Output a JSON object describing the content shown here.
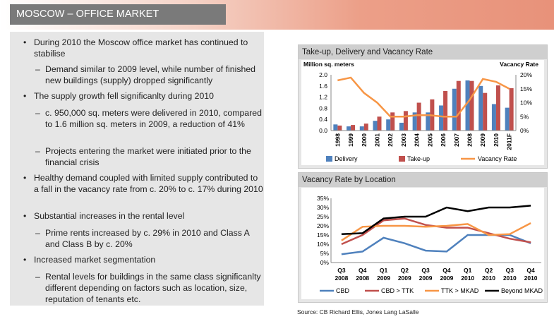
{
  "header": {
    "title": "MOSCOW – OFFICE MARKET"
  },
  "bullets": [
    {
      "level": 1,
      "marker": "•",
      "text": "During 2010 the Moscow office market has continued to stabilise"
    },
    {
      "level": 2,
      "marker": "–",
      "text": "Demand similar to 2009 level, while number of finished new buildings (supply) dropped significantly"
    },
    {
      "level": 1,
      "marker": "•",
      "text": "The supply growth fell significanlty during 2010"
    },
    {
      "level": 2,
      "marker": "–",
      "text": "c. 950,000 sq. meters were delivered in 2010, compared to 1.6 million sq. meters in 2009, a reduction of 41%"
    },
    {
      "level": 2,
      "marker": "–",
      "text": "Projects entering the market were initiated prior to the financial crisis"
    },
    {
      "level": 1,
      "marker": "•",
      "text": "Healthy demand coupled with limited supply contributed to a fall in the vacancy rate from c. 20% to c. 17% during 2010"
    },
    {
      "level": 1,
      "marker": "•",
      "text": "Substantial increases in the rental level"
    },
    {
      "level": 2,
      "marker": "–",
      "text": "Prime rents increased by c. 29% in 2010 and Class A and Class B by c. 20%"
    },
    {
      "level": 1,
      "marker": "•",
      "text": "Increased market segmentation"
    },
    {
      "level": 2,
      "marker": "–",
      "text": "Rental levels for buildings in the same class significanlty different depending on factors such as location, size, reputation of tenants etc."
    }
  ],
  "source": "Source: CB Richard Ellis, Jones Lang LaSalle",
  "chart_data": [
    {
      "type": "bar",
      "panel_title": "Take-up, Delivery and Vacancy Rate",
      "ylabel_left": "Million sq. meters",
      "ylabel_right": "Vacancy Rate",
      "categories": [
        "1998",
        "1999",
        "2000",
        "2001",
        "2002",
        "2003",
        "2004",
        "2005",
        "2006",
        "2007",
        "2008",
        "2009",
        "2010",
        "2011F"
      ],
      "ylim_left": [
        0,
        2.0
      ],
      "yticks_left": [
        "0.0",
        "0.4",
        "0.8",
        "1.2",
        "1.6",
        "2.0"
      ],
      "ylim_right": [
        0,
        20
      ],
      "yticks_right": [
        "0%",
        "5%",
        "10%",
        "15%",
        "20%"
      ],
      "series": [
        {
          "name": "Delivery",
          "kind": "bar",
          "color": "#4f81bd",
          "values": [
            0.22,
            0.15,
            0.15,
            0.35,
            0.4,
            0.28,
            0.65,
            0.65,
            0.9,
            1.5,
            1.8,
            1.6,
            0.95,
            0.82
          ]
        },
        {
          "name": "Take-up",
          "kind": "bar",
          "color": "#c0504d",
          "values": [
            0.18,
            0.2,
            0.25,
            0.5,
            0.65,
            0.7,
            1.0,
            1.12,
            1.42,
            1.78,
            1.78,
            1.35,
            1.62,
            1.52
          ]
        },
        {
          "name": "Vacancy Rate",
          "kind": "line",
          "axis": "right",
          "color": "#f79646",
          "values": [
            18,
            19,
            13.5,
            10,
            5,
            5,
            5.5,
            5.5,
            5,
            5,
            11,
            18.5,
            17.5,
            15
          ]
        }
      ],
      "legend": "bottom"
    },
    {
      "type": "line",
      "panel_title": "Vacancy Rate by Location",
      "categories": [
        [
          "Q3",
          "2008"
        ],
        [
          "Q4",
          "2008"
        ],
        [
          "Q1",
          "2009"
        ],
        [
          "Q2",
          "2009"
        ],
        [
          "Q3",
          "2009"
        ],
        [
          "Q4",
          "2009"
        ],
        [
          "Q1",
          "2010"
        ],
        [
          "Q2",
          "2010"
        ],
        [
          "Q3",
          "2010"
        ],
        [
          "Q4",
          "2010"
        ]
      ],
      "ylim": [
        0,
        35
      ],
      "yticks": [
        "0%",
        "5%",
        "10%",
        "15%",
        "20%",
        "25%",
        "30%",
        "35%"
      ],
      "series": [
        {
          "name": "CBD",
          "color": "#4f81bd",
          "values": [
            4.5,
            6,
            13.5,
            10.5,
            6.5,
            6,
            15,
            15,
            15,
            10.5
          ]
        },
        {
          "name": "CBD > TTK",
          "color": "#c0504d",
          "values": [
            10,
            15,
            23,
            24,
            20.5,
            19,
            19,
            16,
            13,
            11
          ]
        },
        {
          "name": "TTK > MKAD",
          "color": "#f79646",
          "values": [
            12,
            19.5,
            20,
            20,
            19.5,
            20,
            21,
            15,
            15.5,
            21.5
          ]
        },
        {
          "name": "Beyond MKAD",
          "color": "#000000",
          "values": [
            15.5,
            16,
            24,
            25,
            25,
            30,
            28,
            30,
            30,
            31
          ]
        }
      ],
      "legend": "bottom"
    }
  ]
}
